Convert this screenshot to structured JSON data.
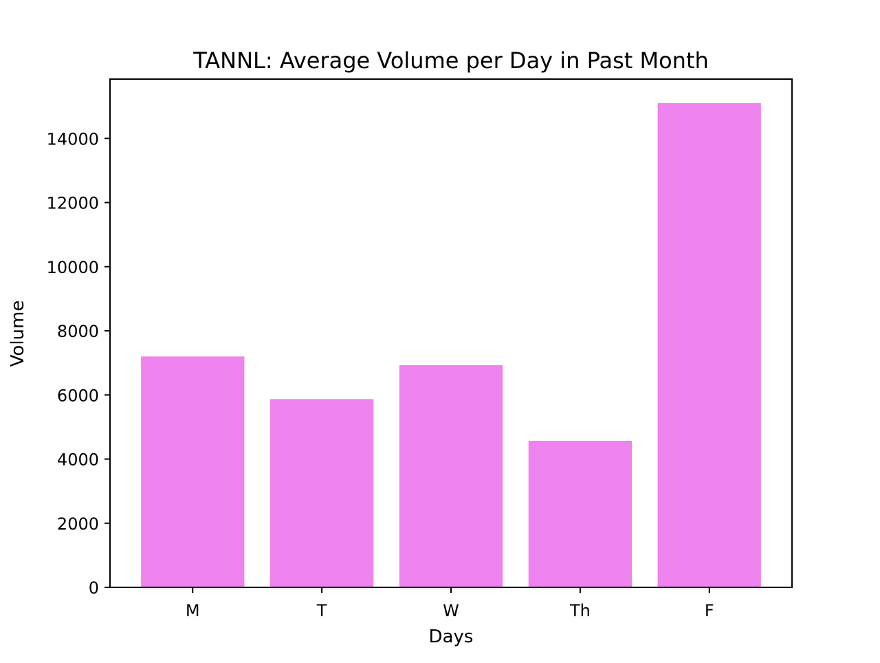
{
  "chart_data": {
    "type": "bar",
    "title": "TANNL: Average Volume per Day in Past Month",
    "xlabel": "Days",
    "ylabel": "Volume",
    "categories": [
      "M",
      "T",
      "W",
      "Th",
      "F"
    ],
    "values": [
      7200,
      5870,
      6930,
      4570,
      15100
    ],
    "ylim": [
      0,
      15850
    ],
    "yticks": [
      0,
      2000,
      4000,
      6000,
      8000,
      10000,
      12000,
      14000
    ],
    "grid": false,
    "legend": "none",
    "bar_color": "#ee82ee"
  }
}
